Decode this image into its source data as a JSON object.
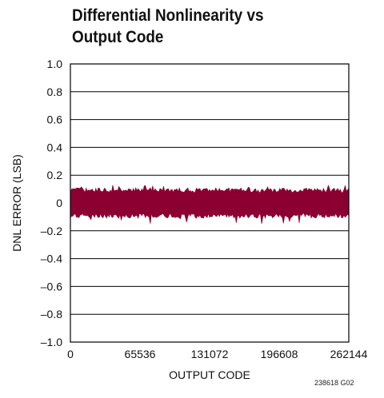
{
  "chart_data": {
    "type": "area",
    "title_lines": [
      "Differential Nonlinearity vs",
      "Output Code"
    ],
    "xlabel": "OUTPUT CODE",
    "ylabel": "DNL ERROR (LSB)",
    "xlim": [
      0,
      262144
    ],
    "ylim": [
      -1.0,
      1.0
    ],
    "x_ticks": [
      0,
      65536,
      131072,
      196608,
      262144
    ],
    "x_tick_labels": [
      "0",
      "65536",
      "131072",
      "196608",
      "262144"
    ],
    "y_ticks": [
      1.0,
      0.8,
      0.6,
      0.4,
      0.2,
      0,
      -0.2,
      -0.4,
      -0.6,
      -0.8,
      -1.0
    ],
    "y_tick_labels": [
      "1.0",
      "0.8",
      "0.6",
      "0.4",
      "0.2",
      "0",
      "–0.2",
      "–0.4",
      "–0.6",
      "–0.8",
      "–1.0"
    ],
    "grid": true,
    "series": [
      {
        "color": "#8b0030",
        "band_upper_approx": 0.1,
        "band_lower_approx": -0.1,
        "peak_upper": 0.13,
        "peak_lower": -0.15
      }
    ],
    "figure_id": "238618 G02"
  }
}
